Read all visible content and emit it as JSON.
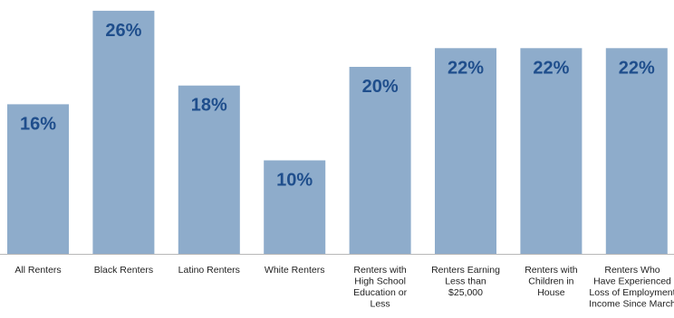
{
  "chart_data": {
    "type": "bar",
    "categories": [
      "All Renters",
      "Black Renters",
      "Latino Renters",
      "White Renters",
      "Renters with High School Education or Less",
      "Renters Earning Less than $25,000",
      "Renters with Children in House",
      "Renters Who Have Experienced Loss of Employment Income Since March"
    ],
    "category_lines": [
      [
        "All Renters"
      ],
      [
        "Black Renters"
      ],
      [
        "Latino Renters"
      ],
      [
        "White Renters"
      ],
      [
        "Renters with",
        "High School",
        "Education or",
        "Less"
      ],
      [
        "Renters Earning",
        "Less than",
        "$25,000"
      ],
      [
        "Renters with",
        "Children in",
        "House"
      ],
      [
        "Renters Who",
        "Have Experienced",
        "Loss of Employment",
        "Income Since March"
      ]
    ],
    "values": [
      16,
      26,
      18,
      10,
      20,
      22,
      22,
      22
    ],
    "data_labels": [
      "16%",
      "26%",
      "18%",
      "10%",
      "20%",
      "22%",
      "22%",
      "22%"
    ],
    "ylim": [
      0,
      26
    ],
    "grid": false,
    "legend": "none",
    "bar_color": "#8eaccb",
    "label_color": "#1f4e8c",
    "axis_color": "#b8b8b8"
  }
}
